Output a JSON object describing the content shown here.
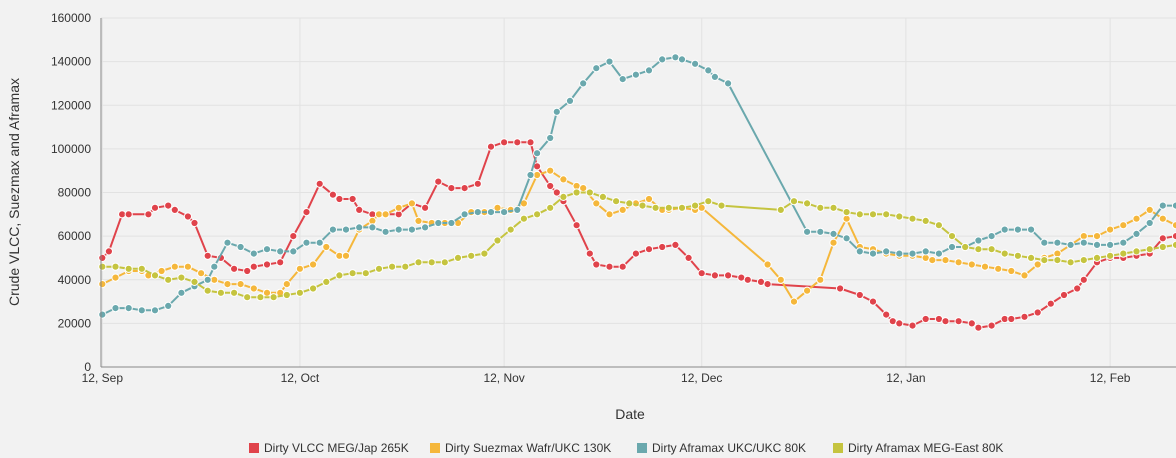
{
  "chart_data": {
    "type": "line",
    "xlabel": "Date",
    "ylabel": "Crude VLCC, Suezmax and Aframax",
    "ylim": [
      0,
      160000
    ],
    "yticks": [
      0,
      20000,
      40000,
      60000,
      80000,
      100000,
      120000,
      140000,
      160000
    ],
    "ytick_labels": [
      "0",
      "20000",
      "40000",
      "60000",
      "80000",
      "100000",
      "120000",
      "140000",
      "160000"
    ],
    "xlim": [
      -0.2,
      163
    ],
    "xticks": [
      0,
      30,
      61,
      91,
      122,
      153
    ],
    "xtick_labels": [
      "12, Sep",
      "12, Oct",
      "12, Nov",
      "12, Dec",
      "12, Jan",
      "12, Feb"
    ],
    "grid": true,
    "legend_position": "bottom",
    "series": [
      {
        "name": "Dirty VLCC MEG/Jap 265K",
        "color": "#e0434b",
        "x": [
          0,
          1,
          3,
          4,
          7,
          8,
          10,
          11,
          13,
          14,
          16,
          18,
          20,
          22,
          23,
          25,
          27,
          29,
          31,
          33,
          35,
          36,
          38,
          39,
          41,
          43,
          45,
          47,
          49,
          51,
          53,
          55,
          57,
          59,
          61,
          63,
          65,
          66,
          68,
          69,
          70,
          72,
          74,
          75,
          77,
          79,
          81,
          83,
          85,
          87,
          89,
          91,
          93,
          95,
          97,
          98,
          100,
          101,
          112,
          115,
          117,
          119,
          120,
          121,
          123,
          125,
          127,
          128,
          130,
          132,
          133,
          135,
          137,
          138,
          140,
          142,
          144,
          146,
          148,
          149,
          151,
          153,
          155,
          157,
          159,
          161,
          163
        ],
        "values": [
          50000,
          53000,
          70000,
          70000,
          70000,
          73000,
          74000,
          72000,
          69000,
          66000,
          51000,
          50000,
          45000,
          44000,
          46000,
          47000,
          48000,
          60000,
          71000,
          84000,
          79000,
          77000,
          77000,
          72000,
          70000,
          70000,
          70000,
          75000,
          73000,
          85000,
          82000,
          82000,
          84000,
          101000,
          103000,
          103000,
          103000,
          92000,
          83000,
          80000,
          76000,
          65000,
          52000,
          47000,
          46000,
          46000,
          52000,
          54000,
          55000,
          56000,
          50000,
          43000,
          42000,
          42000,
          41000,
          40000,
          39000,
          38000,
          36000,
          33000,
          30000,
          24000,
          21000,
          20000,
          19000,
          22000,
          22000,
          21000,
          21000,
          20000,
          18000,
          19000,
          22000,
          22000,
          23000,
          25000,
          29000,
          33000,
          36000,
          40000,
          48000,
          50000,
          50000,
          51000,
          52000,
          59000,
          60000
        ]
      },
      {
        "name": "Dirty Suezmax Wafr/UKC 130K",
        "color": "#f5b73b",
        "x": [
          0,
          2,
          4,
          6,
          7,
          9,
          11,
          13,
          15,
          17,
          19,
          21,
          23,
          25,
          27,
          28,
          30,
          32,
          34,
          36,
          37,
          39,
          41,
          42,
          43,
          45,
          47,
          48,
          50,
          52,
          54,
          56,
          58,
          60,
          62,
          64,
          66,
          68,
          70,
          72,
          73,
          75,
          77,
          79,
          81,
          83,
          85,
          86,
          88,
          90,
          91,
          101,
          103,
          105,
          107,
          109,
          111,
          113,
          115,
          117,
          119,
          121,
          123,
          125,
          126,
          128,
          130,
          132,
          134,
          136,
          138,
          140,
          142,
          143,
          145,
          147,
          149,
          151,
          153,
          155,
          157,
          159,
          161,
          163
        ],
        "values": [
          38000,
          41000,
          44000,
          44000,
          42000,
          44000,
          46000,
          46000,
          43000,
          40000,
          38000,
          38000,
          36000,
          34000,
          34000,
          38000,
          45000,
          47000,
          55000,
          51000,
          51000,
          63000,
          67000,
          70000,
          70000,
          73000,
          75000,
          67000,
          66000,
          66000,
          66000,
          71000,
          71000,
          73000,
          72000,
          75000,
          88000,
          90000,
          86000,
          83000,
          82000,
          75000,
          70000,
          72000,
          75000,
          77000,
          72000,
          72000,
          73000,
          72000,
          73000,
          47000,
          40000,
          30000,
          35000,
          40000,
          57000,
          68000,
          55000,
          54000,
          52000,
          51000,
          51000,
          50000,
          49000,
          49000,
          48000,
          47000,
          46000,
          45000,
          44000,
          42000,
          47000,
          50000,
          52000,
          56000,
          60000,
          60000,
          63000,
          65000,
          68000,
          72000,
          68000,
          65000
        ]
      },
      {
        "name": "Dirty Aframax UKC/UKC 80K",
        "color": "#6aa8ad",
        "x": [
          0,
          2,
          4,
          6,
          8,
          10,
          12,
          14,
          16,
          17,
          19,
          21,
          23,
          25,
          27,
          29,
          31,
          33,
          35,
          37,
          39,
          41,
          43,
          45,
          47,
          49,
          51,
          53,
          55,
          57,
          59,
          61,
          63,
          65,
          66,
          68,
          69,
          71,
          73,
          75,
          77,
          79,
          81,
          83,
          85,
          87,
          88,
          90,
          92,
          93,
          95,
          107,
          109,
          111,
          113,
          115,
          117,
          119,
          121,
          123,
          125,
          127,
          129,
          131,
          133,
          135,
          137,
          139,
          141,
          143,
          145,
          147,
          149,
          151,
          153,
          155,
          157,
          159,
          161,
          163
        ],
        "values": [
          24000,
          27000,
          27000,
          26000,
          26000,
          28000,
          34000,
          37000,
          40000,
          46000,
          57000,
          55000,
          52000,
          54000,
          53000,
          53000,
          57000,
          57000,
          63000,
          63000,
          64000,
          64000,
          62000,
          63000,
          63000,
          64000,
          66000,
          66000,
          70000,
          71000,
          71000,
          71000,
          72000,
          88000,
          98000,
          105000,
          117000,
          122000,
          130000,
          137000,
          140000,
          132000,
          134000,
          136000,
          141000,
          142000,
          141000,
          139000,
          136000,
          133000,
          130000,
          62000,
          62000,
          61000,
          59000,
          53000,
          52000,
          53000,
          52000,
          52000,
          53000,
          52000,
          55000,
          55000,
          58000,
          60000,
          63000,
          63000,
          63000,
          57000,
          57000,
          56000,
          57000,
          56000,
          56000,
          57000,
          61000,
          66000,
          74000,
          74000
        ]
      },
      {
        "name": "Dirty Aframax MEG-East 80K",
        "color": "#c5c43f",
        "x": [
          0,
          2,
          4,
          6,
          8,
          10,
          12,
          14,
          16,
          18,
          20,
          22,
          24,
          26,
          28,
          30,
          32,
          34,
          36,
          38,
          40,
          42,
          44,
          46,
          48,
          50,
          52,
          54,
          56,
          58,
          60,
          62,
          64,
          66,
          68,
          70,
          72,
          74,
          76,
          78,
          80,
          82,
          84,
          86,
          88,
          90,
          92,
          94,
          103,
          105,
          107,
          109,
          111,
          113,
          115,
          117,
          119,
          121,
          123,
          125,
          127,
          129,
          131,
          133,
          135,
          137,
          139,
          141,
          143,
          145,
          147,
          149,
          151,
          153,
          155,
          157,
          159,
          161,
          163
        ],
        "values": [
          46000,
          46000,
          45000,
          45000,
          42000,
          40000,
          41000,
          39000,
          35000,
          34000,
          34000,
          32000,
          32000,
          32000,
          33000,
          34000,
          36000,
          39000,
          42000,
          43000,
          43000,
          45000,
          46000,
          46000,
          48000,
          48000,
          48000,
          50000,
          51000,
          52000,
          58000,
          63000,
          68000,
          70000,
          73000,
          78000,
          80000,
          80000,
          78000,
          76000,
          75000,
          74000,
          73000,
          73000,
          73000,
          74000,
          76000,
          74000,
          72000,
          76000,
          75000,
          73000,
          73000,
          71000,
          70000,
          70000,
          70000,
          69000,
          68000,
          67000,
          65000,
          60000,
          55000,
          54000,
          54000,
          52000,
          51000,
          50000,
          49000,
          49000,
          48000,
          49000,
          50000,
          51000,
          52000,
          53000,
          54000,
          55000,
          56000
        ]
      }
    ]
  }
}
